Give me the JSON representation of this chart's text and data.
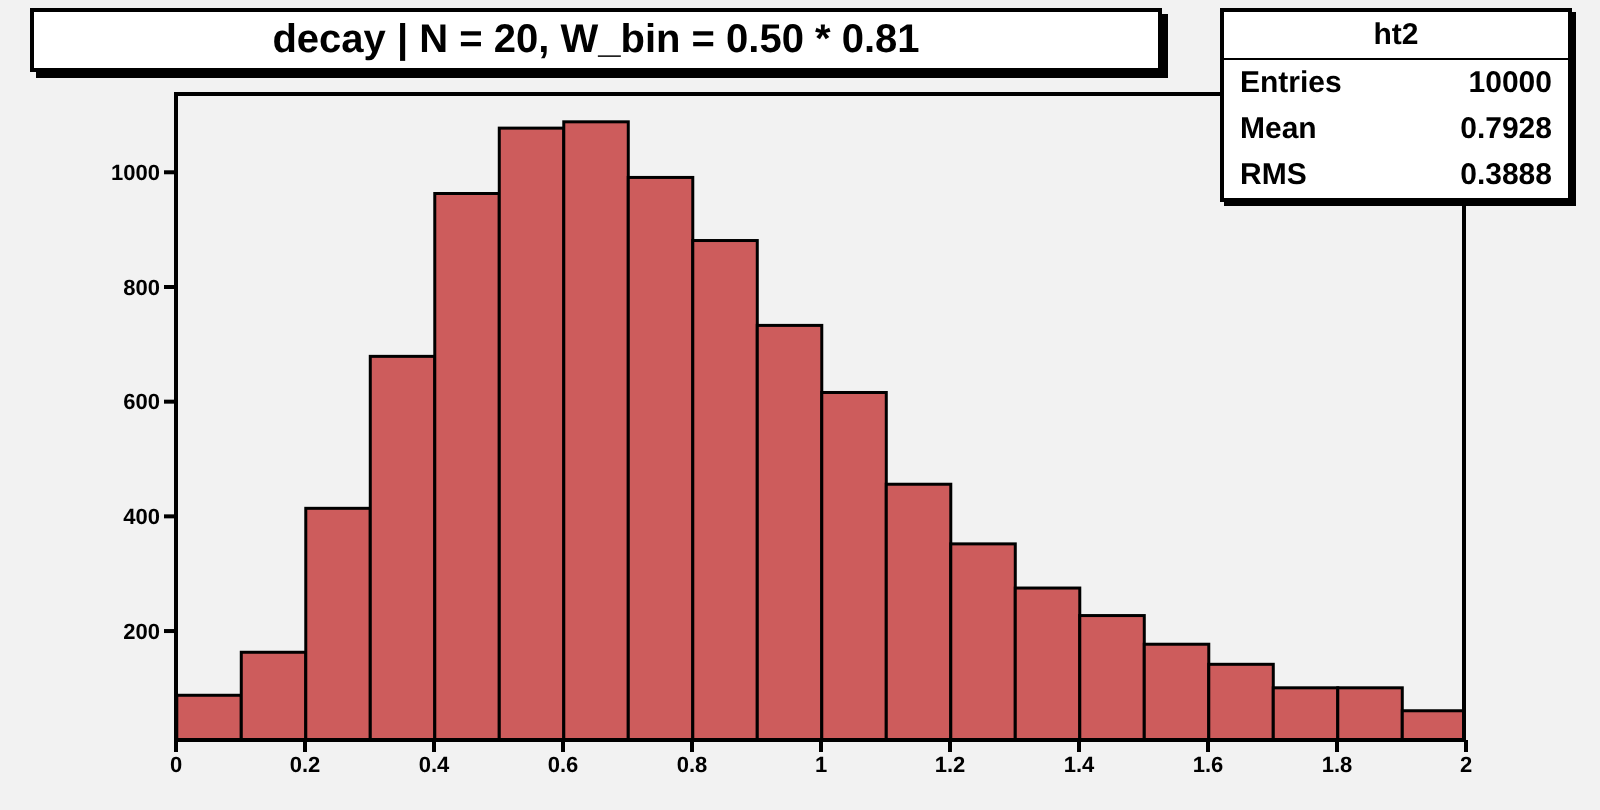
{
  "chart_data": {
    "type": "histogram",
    "title": "decay | N = 20, W_bin = 0.50 * 0.81",
    "bins": [
      0,
      0.1,
      0.2,
      0.3,
      0.4,
      0.5,
      0.6,
      0.7,
      0.8,
      0.9,
      1,
      1.1,
      1.2,
      1.3,
      1.4,
      1.5,
      1.6,
      1.7,
      1.8,
      1.9,
      2
    ],
    "values": [
      88,
      163,
      414,
      679,
      963,
      1077,
      1088,
      991,
      881,
      733,
      616,
      456,
      352,
      275,
      227,
      177,
      142,
      101,
      101,
      61
    ],
    "color": "#cd5c5c",
    "xlim": [
      0,
      2
    ],
    "xticks": [
      0,
      0.2,
      0.4,
      0.6,
      0.8,
      1,
      1.2,
      1.4,
      1.6,
      1.8,
      2
    ],
    "ylim": [
      10,
      1140
    ],
    "yticks": [
      200,
      400,
      600,
      800,
      1000
    ],
    "annotations": [
      "ht2",
      "Entries",
      "10000",
      "Mean",
      "0.7928",
      "RMS",
      "0.3888"
    ]
  }
}
